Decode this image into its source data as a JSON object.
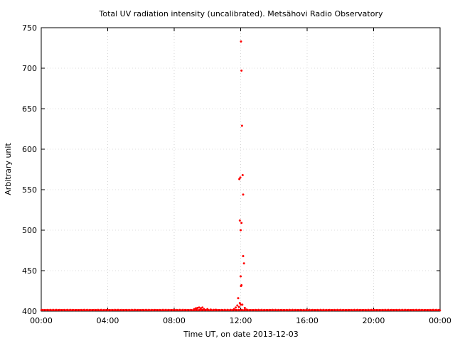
{
  "chart_data": {
    "type": "scatter",
    "title": "Total UV radiation intensity (uncalibrated). Metsähovi Radio Observatory",
    "xlabel": "Time UT, on date 2013-12-03",
    "ylabel": "Arbitrary unit",
    "xlim": [
      "00:00",
      "24:00"
    ],
    "ylim": [
      400,
      750
    ],
    "x_ticks": [
      "00:00",
      "04:00",
      "08:00",
      "12:00",
      "16:00",
      "20:00",
      "00:00"
    ],
    "y_ticks": [
      "400",
      "450",
      "500",
      "550",
      "600",
      "650",
      "700",
      "750"
    ],
    "grid": true,
    "marker_color": "#ff0000",
    "series": [
      {
        "baseline": {
          "value": 401,
          "from_hour": 0,
          "to_hour": 24
        },
        "points": [
          [
            9.2,
            402.5
          ],
          [
            9.3,
            403.5
          ],
          [
            9.4,
            404.0
          ],
          [
            9.5,
            404.5
          ],
          [
            9.6,
            403.5
          ],
          [
            9.7,
            404.5
          ],
          [
            9.8,
            402.5
          ],
          [
            10.0,
            402.5
          ],
          [
            10.2,
            402.0
          ],
          [
            10.5,
            401.8
          ],
          [
            11.6,
            402.5
          ],
          [
            11.7,
            404.5
          ],
          [
            11.8,
            407.0
          ],
          [
            11.85,
            416.0
          ],
          [
            11.9,
            405.0
          ],
          [
            11.95,
            410.0
          ],
          [
            12.0,
            408.0
          ],
          [
            12.02,
            431.0
          ],
          [
            12.0,
            443.0
          ],
          [
            12.05,
            432.0
          ],
          [
            12.1,
            408.0
          ],
          [
            12.15,
            468.0
          ],
          [
            12.2,
            459.0
          ],
          [
            12.0,
            500.0
          ],
          [
            11.95,
            512.0
          ],
          [
            12.05,
            509.0
          ],
          [
            11.92,
            563.0
          ],
          [
            11.98,
            565.0
          ],
          [
            12.12,
            568.0
          ],
          [
            12.15,
            544.0
          ],
          [
            12.08,
            629.0
          ],
          [
            12.05,
            697.0
          ],
          [
            12.02,
            733.0
          ],
          [
            12.25,
            404.0
          ],
          [
            12.35,
            402.0
          ]
        ]
      }
    ]
  }
}
